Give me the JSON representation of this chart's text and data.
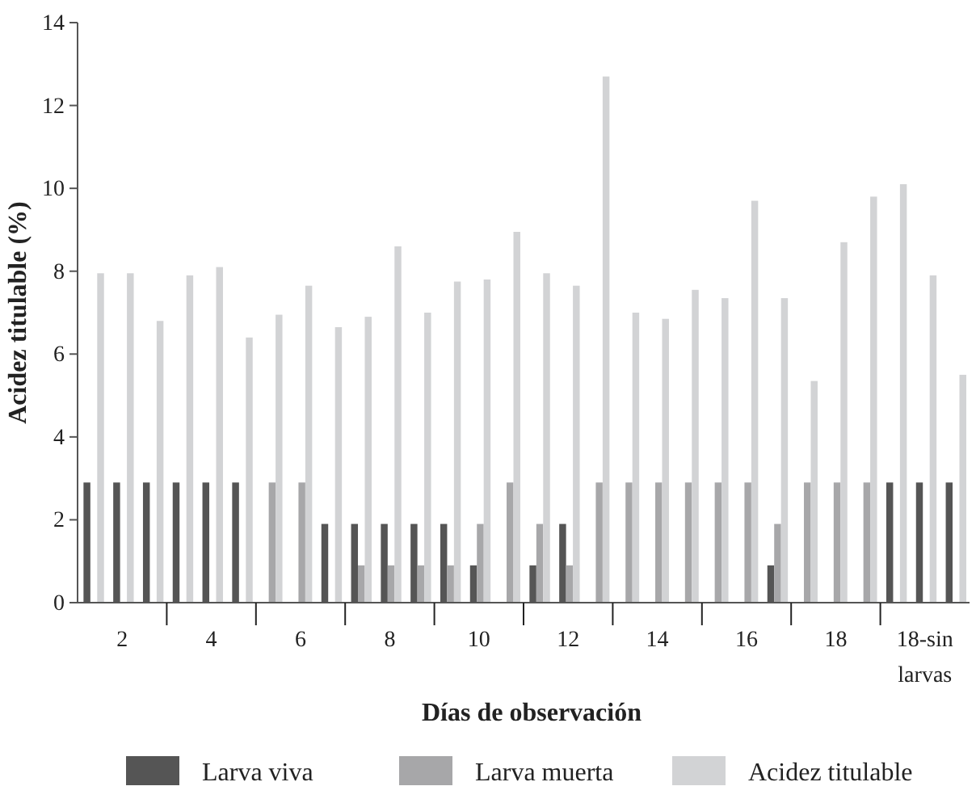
{
  "chart_data": {
    "type": "bar",
    "xlabel": "Días de observación",
    "ylabel": "Acidez titulable (%)",
    "categories": [
      null,
      "2",
      null,
      null,
      "4",
      null,
      null,
      "6",
      null,
      null,
      "8",
      null,
      null,
      "10",
      null,
      null,
      "12",
      null,
      null,
      "14",
      null,
      null,
      "16",
      null,
      null,
      "18",
      null,
      null,
      "18-sin larvas",
      null
    ],
    "series": [
      {
        "name": "Larva viva",
        "color": "#555555",
        "values": [
          2.9,
          2.9,
          2.9,
          2.9,
          2.9,
          2.9,
          0,
          0,
          1.9,
          1.9,
          1.9,
          1.9,
          1.9,
          0.9,
          0,
          0.9,
          1.9,
          0,
          0,
          0,
          0,
          0,
          0,
          0.9,
          0,
          0,
          0,
          2.9,
          2.9,
          2.9
        ]
      },
      {
        "name": "Larva muerta",
        "color": "#a7a7a9",
        "values": [
          0,
          0,
          0,
          0,
          0,
          0,
          2.9,
          2.9,
          0,
          0.9,
          0.9,
          0.9,
          0.9,
          1.9,
          2.9,
          1.9,
          0.9,
          2.9,
          2.9,
          2.9,
          2.9,
          2.9,
          2.9,
          1.9,
          2.9,
          2.9,
          2.9,
          0,
          0,
          0
        ]
      },
      {
        "name": "Acidez titulable",
        "color": "#d2d3d5",
        "values": [
          7.95,
          7.95,
          6.8,
          7.9,
          8.1,
          6.4,
          6.95,
          7.65,
          6.65,
          6.9,
          8.6,
          7.0,
          7.75,
          7.8,
          8.95,
          7.95,
          7.65,
          12.7,
          7.0,
          6.85,
          7.55,
          7.35,
          9.7,
          7.35,
          5.35,
          8.7,
          9.8,
          10.1,
          7.9,
          5.5
        ]
      }
    ],
    "ylim": [
      0,
      14
    ],
    "yticks": [
      0,
      2,
      4,
      6,
      8,
      10,
      12,
      14
    ],
    "grid": false,
    "legend": "bottom"
  }
}
